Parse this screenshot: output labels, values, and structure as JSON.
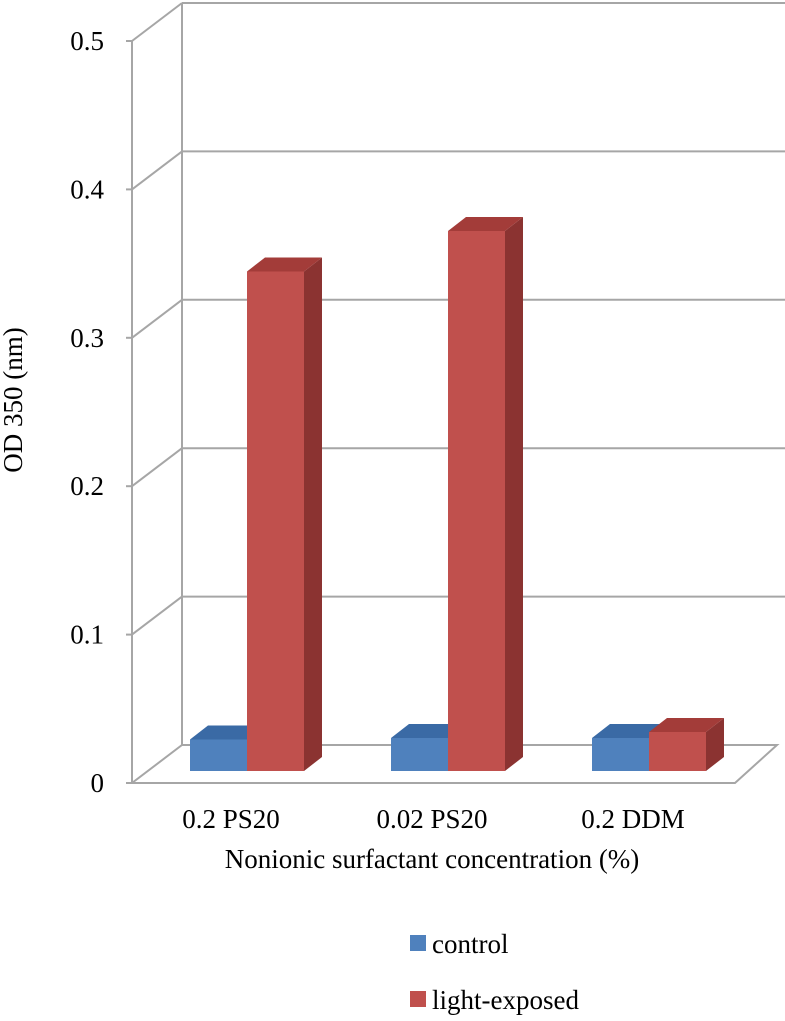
{
  "chart_data": {
    "type": "bar",
    "style": "3d-clustered-column",
    "categories": [
      "0.2 PS20",
      "0.02 PS20",
      "0.2 DDM"
    ],
    "series": [
      {
        "name": "control",
        "values": [
          0.021,
          0.022,
          0.022
        ],
        "color": "#4f81bd",
        "side_color": "#385d8a",
        "top_color": "#3a6aa5"
      },
      {
        "name": "light-exposed",
        "values": [
          0.333,
          0.36,
          0.026
        ],
        "color": "#c0504d",
        "side_color": "#8b3331",
        "top_color": "#a33c39"
      }
    ],
    "xlabel": "Nonionic surfactant concentration (%)",
    "ylabel": "OD 350 (nm)",
    "ylim": [
      0,
      0.5
    ],
    "yticks": [
      "0",
      "0.1",
      "0.2",
      "0.3",
      "0.4",
      "0.5"
    ],
    "grid": true,
    "legend_position": "bottom"
  }
}
